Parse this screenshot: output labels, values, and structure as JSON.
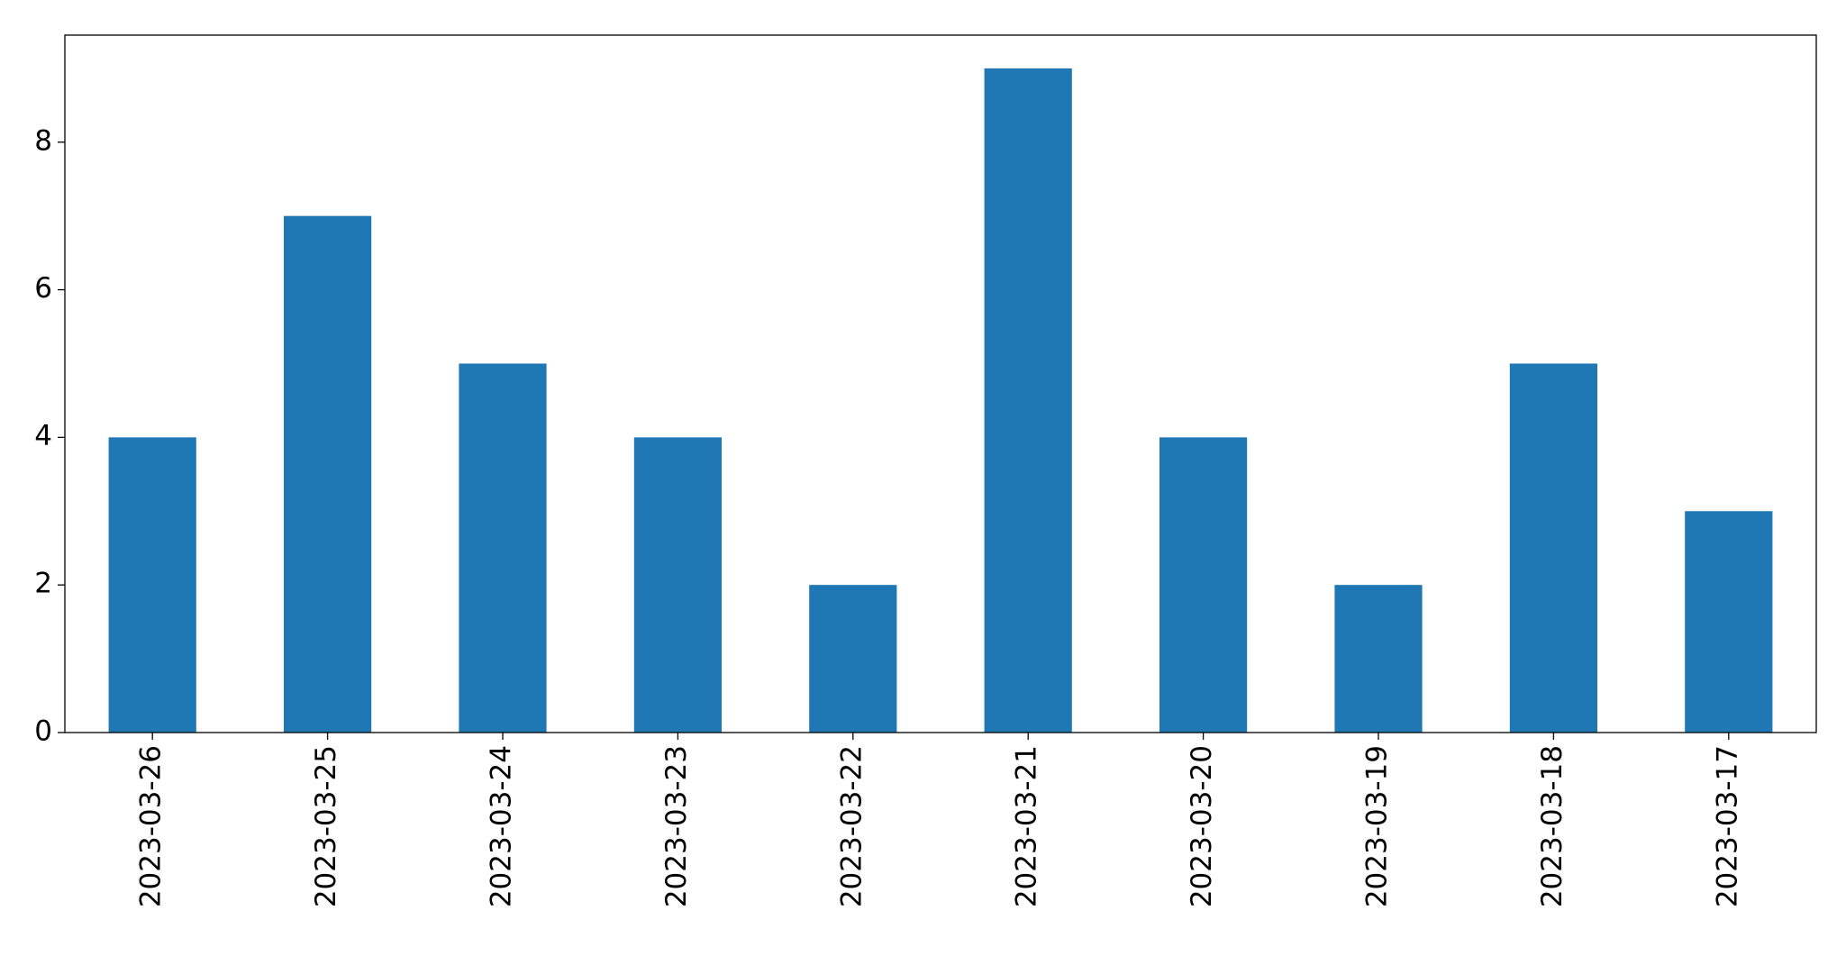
{
  "chart_data": {
    "type": "bar",
    "categories": [
      "2023-03-26",
      "2023-03-25",
      "2023-03-24",
      "2023-03-23",
      "2023-03-22",
      "2023-03-21",
      "2023-03-20",
      "2023-03-19",
      "2023-03-18",
      "2023-03-17"
    ],
    "values": [
      4,
      7,
      5,
      4,
      2,
      9,
      4,
      2,
      5,
      3
    ],
    "color": "#1f77b4",
    "ylim": [
      0,
      9.45
    ],
    "yticks": [
      0,
      2,
      4,
      6,
      8
    ],
    "grid": false
  }
}
